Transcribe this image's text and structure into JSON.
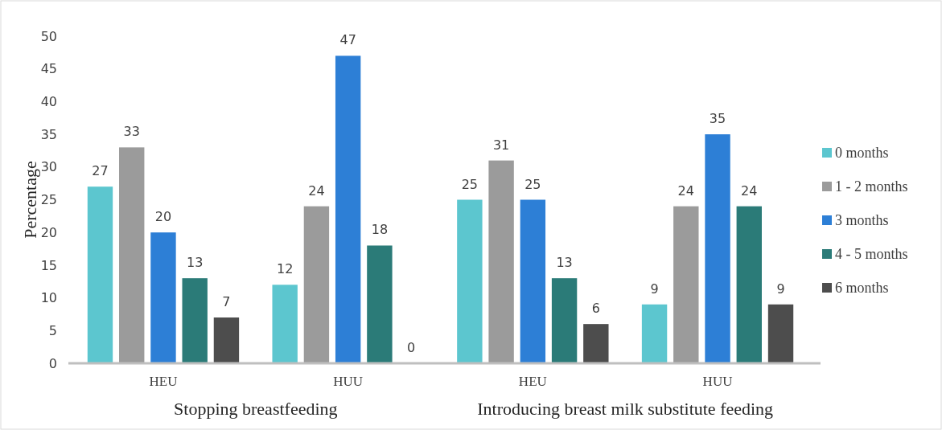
{
  "chart_data": {
    "type": "bar",
    "ylabel": "Percentage",
    "categories": [
      "HEU",
      "HUU",
      "HEU",
      "HUU"
    ],
    "annotations": [
      "Stopping breastfeeding",
      "Introducing breast milk substitute feeding"
    ],
    "series": [
      {
        "name": "0 months",
        "color": "#5cc6cf",
        "values": [
          27,
          12,
          25,
          9
        ]
      },
      {
        "name": "1 - 2 months",
        "color": "#9b9b9b",
        "values": [
          33,
          24,
          31,
          24
        ]
      },
      {
        "name": "3 months",
        "color": "#2d7fd6",
        "values": [
          20,
          47,
          25,
          35
        ]
      },
      {
        "name": "4 - 5 months",
        "color": "#2b7b78",
        "values": [
          13,
          18,
          13,
          24
        ]
      },
      {
        "name": "6 months",
        "color": "#4d4d4d",
        "values": [
          7,
          0,
          6,
          9
        ]
      }
    ],
    "ylim": [
      0,
      50
    ],
    "yticks": [
      0,
      5,
      10,
      15,
      20,
      25,
      30,
      35,
      40,
      45,
      50
    ],
    "data_labels": true,
    "legend": "right",
    "grid": false
  }
}
